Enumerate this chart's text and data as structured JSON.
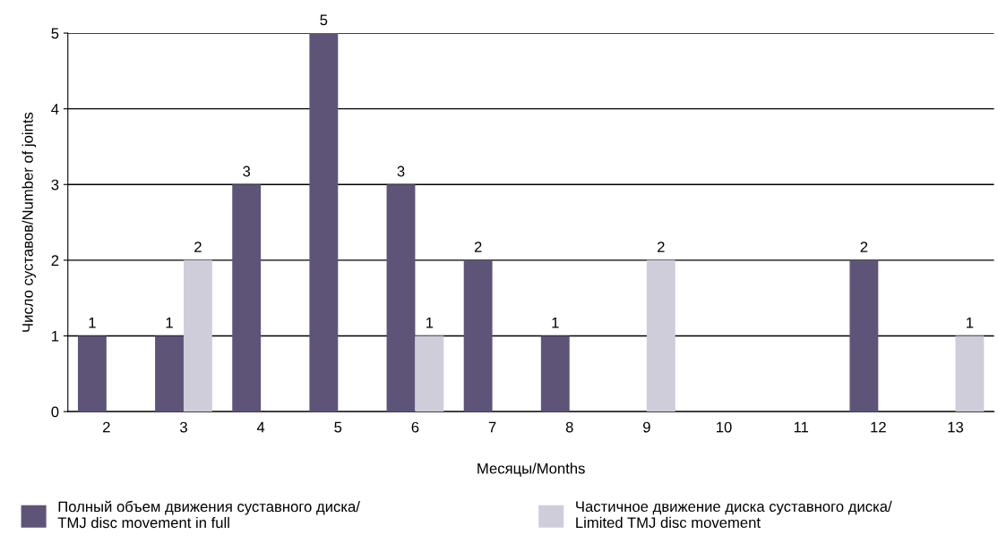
{
  "chart_data": {
    "type": "bar",
    "xlabel": "Месяцы/Months",
    "ylabel": "Число суставов/Number of joints",
    "categories": [
      "2",
      "3",
      "4",
      "5",
      "6",
      "7",
      "8",
      "9",
      "10",
      "11",
      "12",
      "13"
    ],
    "series": [
      {
        "name": "Полный объем движения суставного диска/\nTMJ disc movement in full",
        "color": "#5e5478",
        "values": [
          1,
          1,
          3,
          5,
          3,
          2,
          1,
          0,
          0,
          0,
          2,
          0
        ],
        "value_labels": [
          "1",
          "1",
          "3",
          "5",
          "3",
          "2",
          "1",
          null,
          null,
          null,
          "2",
          null
        ]
      },
      {
        "name": "Частичное движение диска суставного диска/\nLimited TMJ disc movement",
        "color": "#cfcdda",
        "values": [
          0,
          2,
          0,
          0,
          1,
          0,
          0,
          2,
          0,
          0,
          0,
          1
        ],
        "value_labels": [
          null,
          "2",
          null,
          null,
          "1",
          null,
          null,
          "2",
          null,
          null,
          null,
          "1"
        ]
      }
    ],
    "ylim": [
      0,
      5
    ],
    "yticks": [
      0,
      1,
      2,
      3,
      4,
      5
    ],
    "grid": "y",
    "legend": "bottom"
  }
}
